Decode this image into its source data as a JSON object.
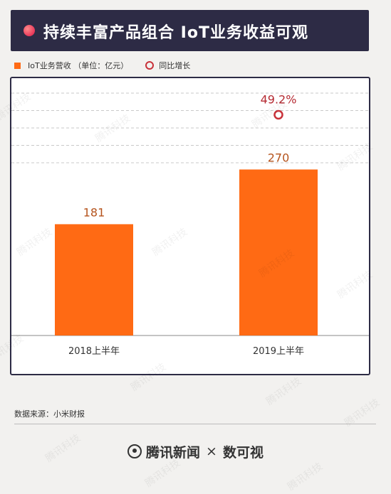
{
  "header": {
    "title": "持续丰富产品组合 IoT业务收益可观"
  },
  "legend": {
    "bar_label": "IoT业务营收 （单位：亿元）",
    "line_label": "同比增长"
  },
  "colors": {
    "bar": "#ff6a14",
    "growth_marker": "#c8323a",
    "title_bg": "#2d2b45"
  },
  "source": "数据来源：小米财报",
  "footer": {
    "brand1": "腾讯新闻",
    "separator": "×",
    "brand2": "数可视"
  },
  "watermark": "腾讯科技",
  "chart_data": {
    "type": "bar",
    "title": "持续丰富产品组合 IoT业务收益可观",
    "categories": [
      "2018上半年",
      "2019上半年"
    ],
    "series": [
      {
        "name": "IoT业务营收",
        "values": [
          181,
          270
        ],
        "labels": [
          "181",
          "270"
        ]
      }
    ],
    "growth": {
      "name": "同比增长",
      "values": [
        null,
        49.2
      ],
      "labels": [
        "",
        "49.2%"
      ]
    },
    "ylim": [
      0,
      400
    ],
    "grid": "dashed-upper",
    "legend_position": "top-left"
  }
}
